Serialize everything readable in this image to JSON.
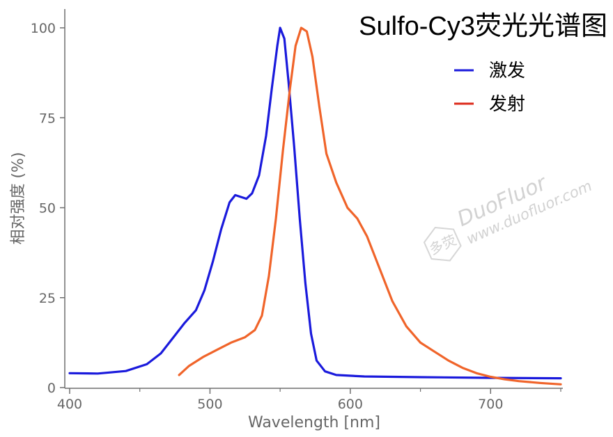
{
  "chart_data": {
    "type": "line",
    "title": "Sulfo-Cy3荧光光谱图",
    "xlabel": "Wavelength [nm]",
    "ylabel": "相对强度 (%)",
    "xlim": [
      400,
      750
    ],
    "ylim": [
      0,
      105
    ],
    "xticks": [
      "400",
      "500",
      "600",
      "700"
    ],
    "yticks": [
      "0",
      "25",
      "50",
      "75",
      "100"
    ],
    "legend_position": "top-right",
    "grid": false,
    "series": [
      {
        "name": "激发",
        "color": "#1a1adc",
        "points": [
          [
            400,
            4.0
          ],
          [
            420,
            3.9
          ],
          [
            440,
            4.6
          ],
          [
            455,
            6.5
          ],
          [
            465,
            9.5
          ],
          [
            475,
            14.5
          ],
          [
            482,
            18.0
          ],
          [
            490,
            21.5
          ],
          [
            496,
            27.0
          ],
          [
            502,
            35.0
          ],
          [
            508,
            44.0
          ],
          [
            514,
            51.5
          ],
          [
            518,
            53.5
          ],
          [
            522,
            53.0
          ],
          [
            526,
            52.5
          ],
          [
            530,
            54.0
          ],
          [
            535,
            59.0
          ],
          [
            540,
            70.0
          ],
          [
            544,
            83.0
          ],
          [
            548,
            95.0
          ],
          [
            550,
            100.0
          ],
          [
            553,
            97.0
          ],
          [
            556,
            85.0
          ],
          [
            560,
            67.0
          ],
          [
            564,
            47.0
          ],
          [
            568,
            29.0
          ],
          [
            572,
            15.0
          ],
          [
            576,
            7.5
          ],
          [
            582,
            4.5
          ],
          [
            590,
            3.5
          ],
          [
            610,
            3.1
          ],
          [
            650,
            2.9
          ],
          [
            700,
            2.7
          ],
          [
            750,
            2.6
          ]
        ]
      },
      {
        "name": "发射",
        "color": "#f0642a",
        "points": [
          [
            478,
            3.5
          ],
          [
            485,
            6.0
          ],
          [
            495,
            8.5
          ],
          [
            505,
            10.5
          ],
          [
            515,
            12.5
          ],
          [
            525,
            14.0
          ],
          [
            532,
            16.0
          ],
          [
            537,
            20.0
          ],
          [
            542,
            31.0
          ],
          [
            547,
            47.0
          ],
          [
            552,
            66.0
          ],
          [
            557,
            83.0
          ],
          [
            561,
            95.0
          ],
          [
            565,
            100.0
          ],
          [
            569,
            99.0
          ],
          [
            573,
            92.0
          ],
          [
            578,
            78.0
          ],
          [
            583,
            65.0
          ],
          [
            590,
            57.0
          ],
          [
            598,
            50.0
          ],
          [
            605,
            47.0
          ],
          [
            612,
            42.0
          ],
          [
            620,
            34.0
          ],
          [
            630,
            24.0
          ],
          [
            640,
            17.0
          ],
          [
            650,
            12.5
          ],
          [
            660,
            10.0
          ],
          [
            670,
            7.5
          ],
          [
            680,
            5.5
          ],
          [
            690,
            4.0
          ],
          [
            700,
            3.0
          ],
          [
            710,
            2.3
          ],
          [
            720,
            1.8
          ],
          [
            735,
            1.3
          ],
          [
            750,
            0.9
          ]
        ]
      }
    ]
  },
  "watermark": {
    "brand": "DuoFluor",
    "url": "www.duofluor.com",
    "logo_text": "多荧"
  }
}
